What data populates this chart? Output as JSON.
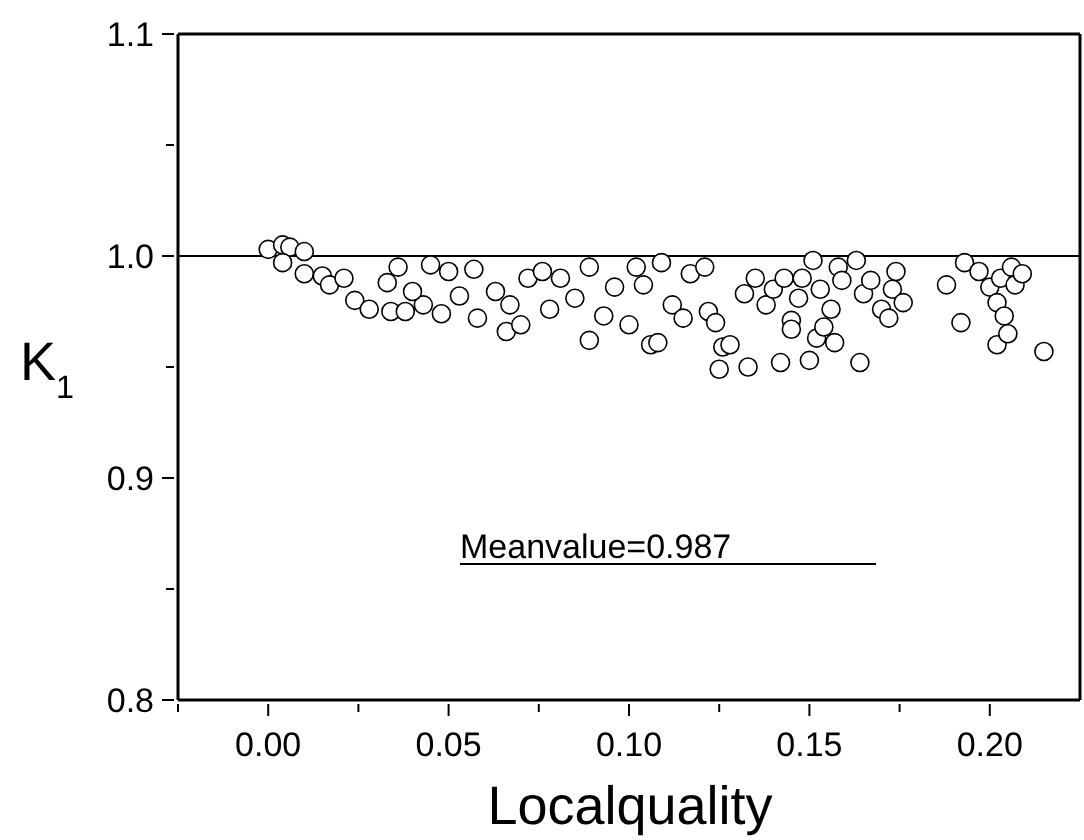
{
  "chart_data": {
    "type": "scatter",
    "xlabel": "Localquality",
    "ylabel": "K$_{1}$",
    "marker": "circle",
    "xlim": [
      -0.025,
      0.225
    ],
    "ylim": [
      0.8,
      1.1
    ],
    "xticks": [
      {
        "value": -0.025,
        "label": null
      },
      {
        "value": 0,
        "label": "0.00"
      },
      {
        "value": 0.025,
        "label": null
      },
      {
        "value": 0.05,
        "label": "0.05"
      },
      {
        "value": 0.075,
        "label": null
      },
      {
        "value": 0.1,
        "label": "0.10"
      },
      {
        "value": 0.125,
        "label": null
      },
      {
        "value": 0.15,
        "label": "0.15"
      },
      {
        "value": 0.175,
        "label": null
      },
      {
        "value": 0.2,
        "label": "0.20"
      }
    ],
    "yticks": [
      0.8,
      {
        "value": 0.85,
        "label": null
      },
      0.9,
      {
        "value": 0.95,
        "label": null
      },
      {
        "value": 1.0,
        "label": "1.0"
      },
      {
        "value": 1.05,
        "label": null
      },
      1.1
    ],
    "ref_lines": [
      {
        "axis": "y",
        "value": 1.0,
        "color": "#000000"
      }
    ],
    "annotations": [
      "Meanvalue=0.987"
    ],
    "series": [
      {
        "color": "#ffffff",
        "x": [
          0.0,
          0.004,
          0.006,
          0.01,
          0.004,
          0.01,
          0.015,
          0.017,
          0.021,
          0.024,
          0.028,
          0.034,
          0.038,
          0.043,
          0.048,
          0.033,
          0.036,
          0.04,
          0.045,
          0.05,
          0.053,
          0.057,
          0.058,
          0.063,
          0.066,
          0.067,
          0.07,
          0.072,
          0.076,
          0.078,
          0.081,
          0.085,
          0.089,
          0.089,
          0.093,
          0.096,
          0.1,
          0.102,
          0.104,
          0.106,
          0.108,
          0.109,
          0.112,
          0.115,
          0.117,
          0.121,
          0.122,
          0.124,
          0.125,
          0.126,
          0.128,
          0.132,
          0.133,
          0.135,
          0.138,
          0.14,
          0.142,
          0.143,
          0.145,
          0.145,
          0.147,
          0.148,
          0.15,
          0.151,
          0.152,
          0.153,
          0.154,
          0.156,
          0.157,
          0.158,
          0.159,
          0.163,
          0.164,
          0.165,
          0.167,
          0.17,
          0.172,
          0.173,
          0.174,
          0.176,
          0.188,
          0.192,
          0.193,
          0.197,
          0.2,
          0.202,
          0.202,
          0.203,
          0.204,
          0.205,
          0.206,
          0.207,
          0.209,
          0.215
        ],
        "values": [
          1.003,
          1.005,
          1.004,
          1.002,
          0.997,
          0.992,
          0.991,
          0.987,
          0.99,
          0.98,
          0.976,
          0.975,
          0.975,
          0.978,
          0.974,
          0.988,
          0.995,
          0.984,
          0.996,
          0.993,
          0.982,
          0.994,
          0.972,
          0.984,
          0.966,
          0.978,
          0.969,
          0.99,
          0.993,
          0.976,
          0.99,
          0.981,
          0.962,
          0.995,
          0.973,
          0.986,
          0.969,
          0.995,
          0.987,
          0.96,
          0.961,
          0.997,
          0.978,
          0.972,
          0.992,
          0.995,
          0.975,
          0.97,
          0.949,
          0.959,
          0.96,
          0.983,
          0.95,
          0.99,
          0.978,
          0.985,
          0.952,
          0.99,
          0.971,
          0.967,
          0.981,
          0.99,
          0.953,
          0.998,
          0.963,
          0.985,
          0.968,
          0.976,
          0.961,
          0.995,
          0.989,
          0.998,
          0.952,
          0.983,
          0.989,
          0.976,
          0.972,
          0.985,
          0.993,
          0.979,
          0.987,
          0.97,
          0.997,
          0.993,
          0.986,
          0.979,
          0.96,
          0.99,
          0.973,
          0.965,
          0.995,
          0.987,
          0.992,
          0.957
        ]
      }
    ]
  }
}
